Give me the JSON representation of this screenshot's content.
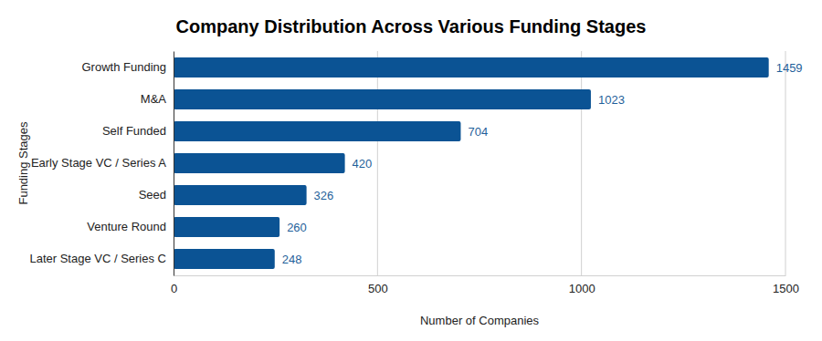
{
  "chart_data": {
    "type": "bar",
    "title": "Company Distribution Across Various Funding Stages",
    "x_label": "Number of Companies",
    "y_label": "Funding Stages",
    "categories": [
      "Growth Funding",
      "M&A",
      "Self Funded",
      "Early Stage VC / Series A",
      "Seed",
      "Venture Round",
      "Later Stage VC / Series C"
    ],
    "values": [
      1459,
      1023,
      704,
      420,
      326,
      260,
      248
    ],
    "color": "#0b5394",
    "orientation": "horizontal",
    "xlim": [
      0,
      1500
    ],
    "xticks": [
      0,
      500,
      1000,
      1500
    ],
    "grid": true,
    "data_labels": true
  }
}
